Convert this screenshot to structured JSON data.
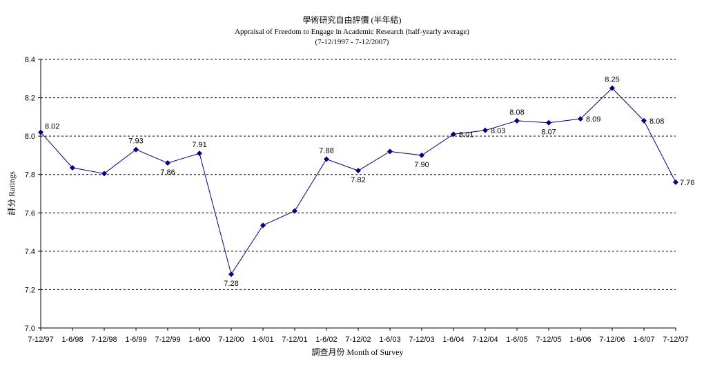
{
  "chart_data": {
    "type": "line",
    "title": "學術研究自由評價 (半年結)",
    "subtitle": "Appraisal of Freedom to Engage in Academic Research (half-yearly average)",
    "period": "(7-12/1997 - 7-12/2007)",
    "xlabel": "調查月份 Month of Survey",
    "ylabel": "評分 Ratings",
    "ylim": [
      7.0,
      8.4
    ],
    "yticks": [
      "7.0",
      "7.2",
      "7.4",
      "7.6",
      "7.8",
      "8.0",
      "8.2",
      "8.4"
    ],
    "grid": "horizontal dashed",
    "categories": [
      "7-12/97",
      "1-6/98",
      "7-12/98",
      "1-6/99",
      "7-12/99",
      "1-6/00",
      "7-12/00",
      "1-6/01",
      "7-12/01",
      "1-6/02",
      "7-12/02",
      "1-6/03",
      "7-12/03",
      "1-6/04",
      "7-12/04",
      "1-6/05",
      "7-12/05",
      "1-6/06",
      "7-12/06",
      "1-6/07",
      "7-12/07"
    ],
    "series": [
      {
        "name": "",
        "color": "#000080",
        "values": [
          8.02,
          7.835,
          7.805,
          7.93,
          7.86,
          7.91,
          7.28,
          7.535,
          7.61,
          7.88,
          7.82,
          7.92,
          7.9,
          8.01,
          8.03,
          8.08,
          8.07,
          8.09,
          8.25,
          8.08,
          7.76
        ],
        "data_labels": [
          {
            "index": 0,
            "text": "8.02"
          },
          {
            "index": 3,
            "text": "7.93"
          },
          {
            "index": 4,
            "text": "7.86"
          },
          {
            "index": 5,
            "text": "7.91"
          },
          {
            "index": 6,
            "text": "7.28"
          },
          {
            "index": 9,
            "text": "7.88"
          },
          {
            "index": 10,
            "text": "7.82"
          },
          {
            "index": 12,
            "text": "7.90"
          },
          {
            "index": 13,
            "text": "8.01"
          },
          {
            "index": 14,
            "text": "8.03"
          },
          {
            "index": 15,
            "text": "8.08"
          },
          {
            "index": 16,
            "text": "8.07"
          },
          {
            "index": 17,
            "text": "8.09"
          },
          {
            "index": 18,
            "text": "8.25"
          },
          {
            "index": 19,
            "text": "8.08"
          },
          {
            "index": 20,
            "text": "7.76"
          }
        ]
      }
    ]
  }
}
